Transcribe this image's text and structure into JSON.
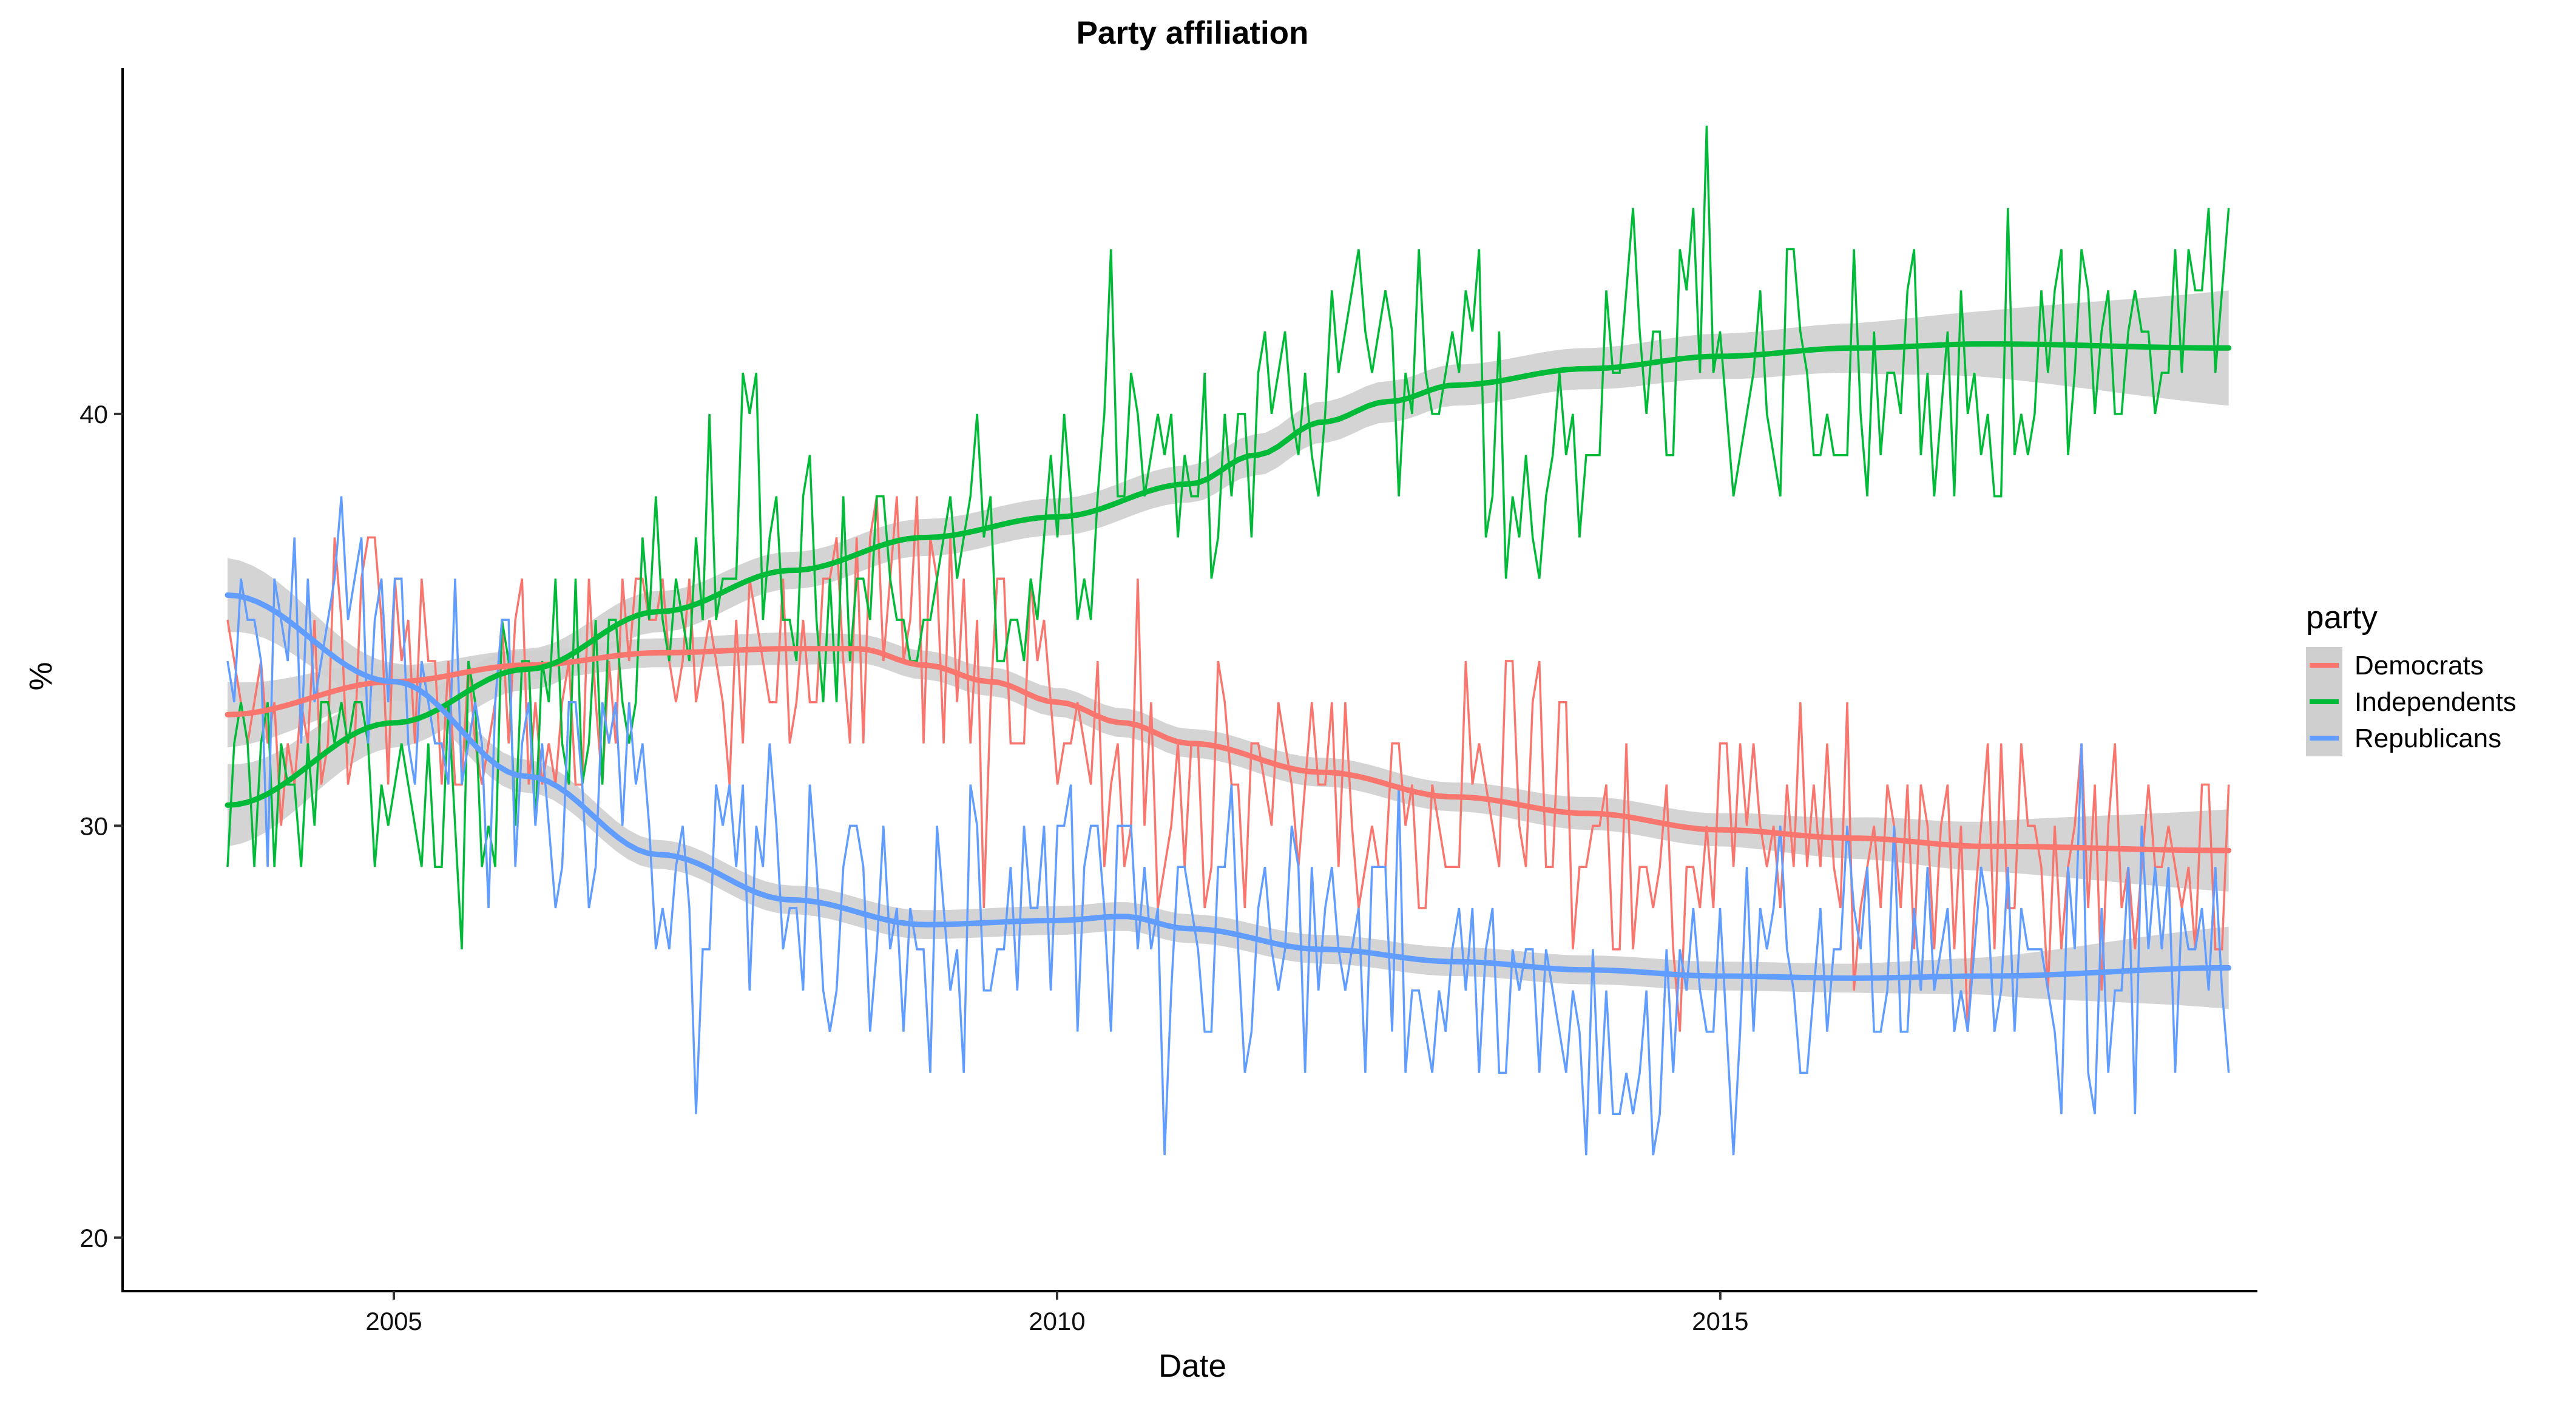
{
  "chart_data": {
    "type": "line",
    "title": "Party affiliation",
    "xlabel": "Date",
    "ylabel": "%",
    "x_range": [
      "2003-10-01",
      "2018-11-01"
    ],
    "xlim": [
      "2002-12-16",
      "2019-01-19"
    ],
    "ylim": [
      18.7,
      48.4
    ],
    "x_ticks": [
      {
        "date": "2005-01-01",
        "label": "2005"
      },
      {
        "date": "2010-01-01",
        "label": "2010"
      },
      {
        "date": "2015-01-01",
        "label": "2015"
      }
    ],
    "y_ticks": [
      20,
      30,
      40
    ],
    "grid": false,
    "legend": {
      "title": "party",
      "position": "right"
    },
    "smoothing": "loess trend with grey confidence band",
    "band_color": "#cfcfcf",
    "series": [
      {
        "name": "Democrats",
        "color": "#F8766D",
        "anchors": [
          [
            "2003-10-01",
            31.5
          ],
          [
            "2004-07-01",
            34.0
          ],
          [
            "2005-07-01",
            33.5
          ],
          [
            "2006-07-01",
            33.5
          ],
          [
            "2007-07-01",
            33.0
          ],
          [
            "2008-07-01",
            35.0
          ],
          [
            "2009-07-01",
            34.0
          ],
          [
            "2010-07-01",
            31.0
          ],
          [
            "2011-07-01",
            31.0
          ],
          [
            "2012-07-01",
            30.5
          ],
          [
            "2013-07-01",
            31.0
          ],
          [
            "2014-07-01",
            29.5
          ],
          [
            "2015-07-01",
            30.0
          ],
          [
            "2016-07-01",
            29.5
          ],
          [
            "2017-07-01",
            29.5
          ],
          [
            "2018-11-01",
            29.0
          ]
        ],
        "min": 25,
        "max": 39,
        "trend": [
          [
            "2003-10-01",
            32.7
          ],
          [
            "2005-01-01",
            33.5
          ],
          [
            "2006-01-01",
            33.9
          ],
          [
            "2007-01-01",
            34.2
          ],
          [
            "2008-01-01",
            34.3
          ],
          [
            "2008-07-01",
            34.3
          ],
          [
            "2009-01-01",
            33.9
          ],
          [
            "2009-07-01",
            33.5
          ],
          [
            "2010-01-01",
            33.0
          ],
          [
            "2010-07-01",
            32.5
          ],
          [
            "2011-01-01",
            32.0
          ],
          [
            "2012-01-01",
            31.3
          ],
          [
            "2013-01-01",
            30.7
          ],
          [
            "2014-01-01",
            30.3
          ],
          [
            "2015-01-01",
            29.9
          ],
          [
            "2016-01-01",
            29.7
          ],
          [
            "2017-01-01",
            29.5
          ],
          [
            "2018-11-01",
            29.4
          ]
        ],
        "band_halfwidth": [
          0.8,
          0.4,
          0.35,
          0.35,
          0.4,
          0.35,
          0.35,
          0.35,
          0.35,
          0.35,
          0.35,
          0.35,
          0.35,
          0.4,
          0.4,
          0.5,
          0.6,
          1.0
        ]
      },
      {
        "name": "Independents",
        "color": "#00BA38",
        "anchors": [
          [
            "2003-10-01",
            31.0
          ],
          [
            "2004-07-01",
            31.0
          ],
          [
            "2005-07-01",
            31.0
          ],
          [
            "2006-07-01",
            33.0
          ],
          [
            "2007-07-01",
            38.0
          ],
          [
            "2008-07-01",
            36.0
          ],
          [
            "2009-07-01",
            36.0
          ],
          [
            "2010-07-01",
            38.0
          ],
          [
            "2011-07-01",
            39.0
          ],
          [
            "2012-07-01",
            41.0
          ],
          [
            "2013-07-01",
            39.0
          ],
          [
            "2014-07-01",
            43.0
          ],
          [
            "2015-07-01",
            41.0
          ],
          [
            "2016-07-01",
            41.0
          ],
          [
            "2017-07-01",
            41.0
          ],
          [
            "2018-11-01",
            43.0
          ]
        ],
        "min": 27,
        "max": 47,
        "trend": [
          [
            "2003-10-01",
            30.5
          ],
          [
            "2005-01-01",
            32.5
          ],
          [
            "2006-01-01",
            33.8
          ],
          [
            "2007-01-01",
            35.2
          ],
          [
            "2008-01-01",
            36.2
          ],
          [
            "2009-01-01",
            37.0
          ],
          [
            "2010-01-01",
            37.5
          ],
          [
            "2011-01-01",
            38.3
          ],
          [
            "2011-07-01",
            39.0
          ],
          [
            "2012-01-01",
            39.8
          ],
          [
            "2012-07-01",
            40.3
          ],
          [
            "2013-01-01",
            40.7
          ],
          [
            "2014-01-01",
            41.1
          ],
          [
            "2015-01-01",
            41.4
          ],
          [
            "2016-01-01",
            41.6
          ],
          [
            "2017-01-01",
            41.7
          ],
          [
            "2018-11-01",
            41.6
          ]
        ],
        "band_halfwidth": [
          1.0,
          0.6,
          0.5,
          0.5,
          0.45,
          0.45,
          0.45,
          0.45,
          0.5,
          0.5,
          0.5,
          0.5,
          0.5,
          0.55,
          0.6,
          0.8,
          1.4
        ]
      },
      {
        "name": "Republicans",
        "color": "#619CFF",
        "anchors": [
          [
            "2003-10-01",
            34.0
          ],
          [
            "2004-07-01",
            35.0
          ],
          [
            "2005-07-01",
            33.0
          ],
          [
            "2006-07-01",
            31.0
          ],
          [
            "2007-07-01",
            29.0
          ],
          [
            "2008-07-01",
            27.5
          ],
          [
            "2009-07-01",
            27.5
          ],
          [
            "2010-07-01",
            28.0
          ],
          [
            "2011-07-01",
            27.5
          ],
          [
            "2012-07-01",
            27.0
          ],
          [
            "2013-07-01",
            25.0
          ],
          [
            "2014-07-01",
            24.5
          ],
          [
            "2015-07-01",
            26.5
          ],
          [
            "2016-07-01",
            26.5
          ],
          [
            "2017-07-01",
            26.5
          ],
          [
            "2018-11-01",
            26.5
          ]
        ],
        "min": 20,
        "max": 39,
        "trend": [
          [
            "2003-10-01",
            35.6
          ],
          [
            "2005-01-01",
            33.5
          ],
          [
            "2006-01-01",
            31.2
          ],
          [
            "2007-01-01",
            29.3
          ],
          [
            "2008-01-01",
            28.2
          ],
          [
            "2009-01-01",
            27.6
          ],
          [
            "2010-01-01",
            27.7
          ],
          [
            "2010-07-01",
            27.8
          ],
          [
            "2011-01-01",
            27.5
          ],
          [
            "2012-01-01",
            27.0
          ],
          [
            "2013-01-01",
            26.7
          ],
          [
            "2014-01-01",
            26.5
          ],
          [
            "2015-01-01",
            26.35
          ],
          [
            "2016-01-01",
            26.3
          ],
          [
            "2017-01-01",
            26.35
          ],
          [
            "2018-11-01",
            26.55
          ]
        ],
        "band_halfwidth": [
          0.9,
          0.45,
          0.4,
          0.35,
          0.35,
          0.35,
          0.35,
          0.35,
          0.35,
          0.35,
          0.35,
          0.35,
          0.35,
          0.35,
          0.45,
          1.0
        ]
      }
    ]
  }
}
